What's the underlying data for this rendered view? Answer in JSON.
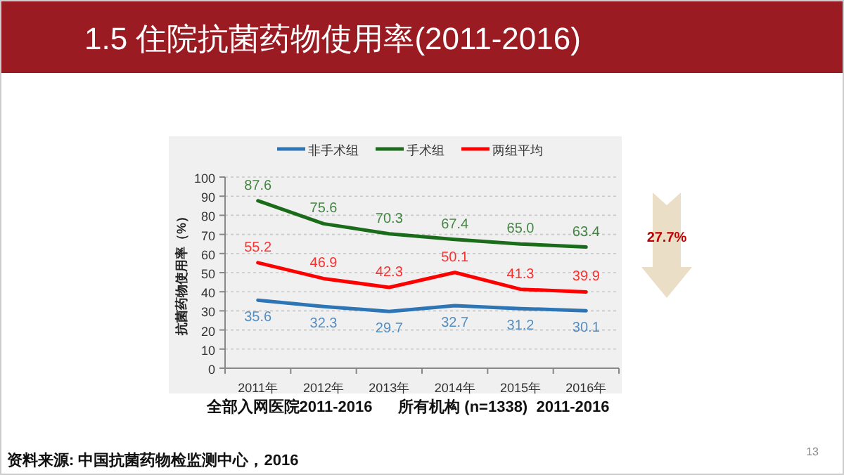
{
  "chart_data": {
    "type": "line",
    "title": "1.5 住院抗菌药物使用率(2011-2016)",
    "subtitle": "全部入网医院2011-2016      所有机构 (n=1338)  2011-2016",
    "ylabel": "抗菌药物使用率（%）",
    "categories": [
      "2011年",
      "2012年",
      "2013年",
      "2014年",
      "2015年",
      "2016年"
    ],
    "series": [
      {
        "name": "非手术组",
        "color": "#2e75b6",
        "values": [
          35.6,
          32.3,
          29.7,
          32.7,
          31.2,
          30.1
        ],
        "value_labels": [
          "35.6",
          "32.3",
          "29.7",
          "32.7",
          "31.2",
          "30.1"
        ]
      },
      {
        "name": "手术组",
        "color": "#1a6b1a",
        "values": [
          87.6,
          75.6,
          70.3,
          67.4,
          65.0,
          63.4
        ],
        "value_labels": [
          "87.6",
          "75.6",
          "70.3",
          "67.4",
          "65.0",
          "63.4"
        ]
      },
      {
        "name": "两组平均",
        "color": "#ff0000",
        "values": [
          55.2,
          46.9,
          42.3,
          50.1,
          41.3,
          39.9
        ],
        "value_labels": [
          "55.2",
          "46.9",
          "42.3",
          "50.1",
          "41.3",
          "39.9"
        ]
      }
    ],
    "ylim": [
      0,
      100
    ],
    "yticks": [
      0,
      10,
      20,
      30,
      40,
      50,
      60,
      70,
      80,
      90,
      100
    ],
    "grid": "y",
    "legend": "top",
    "marker": "none",
    "line_style": "solid",
    "annotations": [
      "27.7%",
      "资料来源: 中国抗菌药物检监测中心，2016",
      "13"
    ]
  }
}
